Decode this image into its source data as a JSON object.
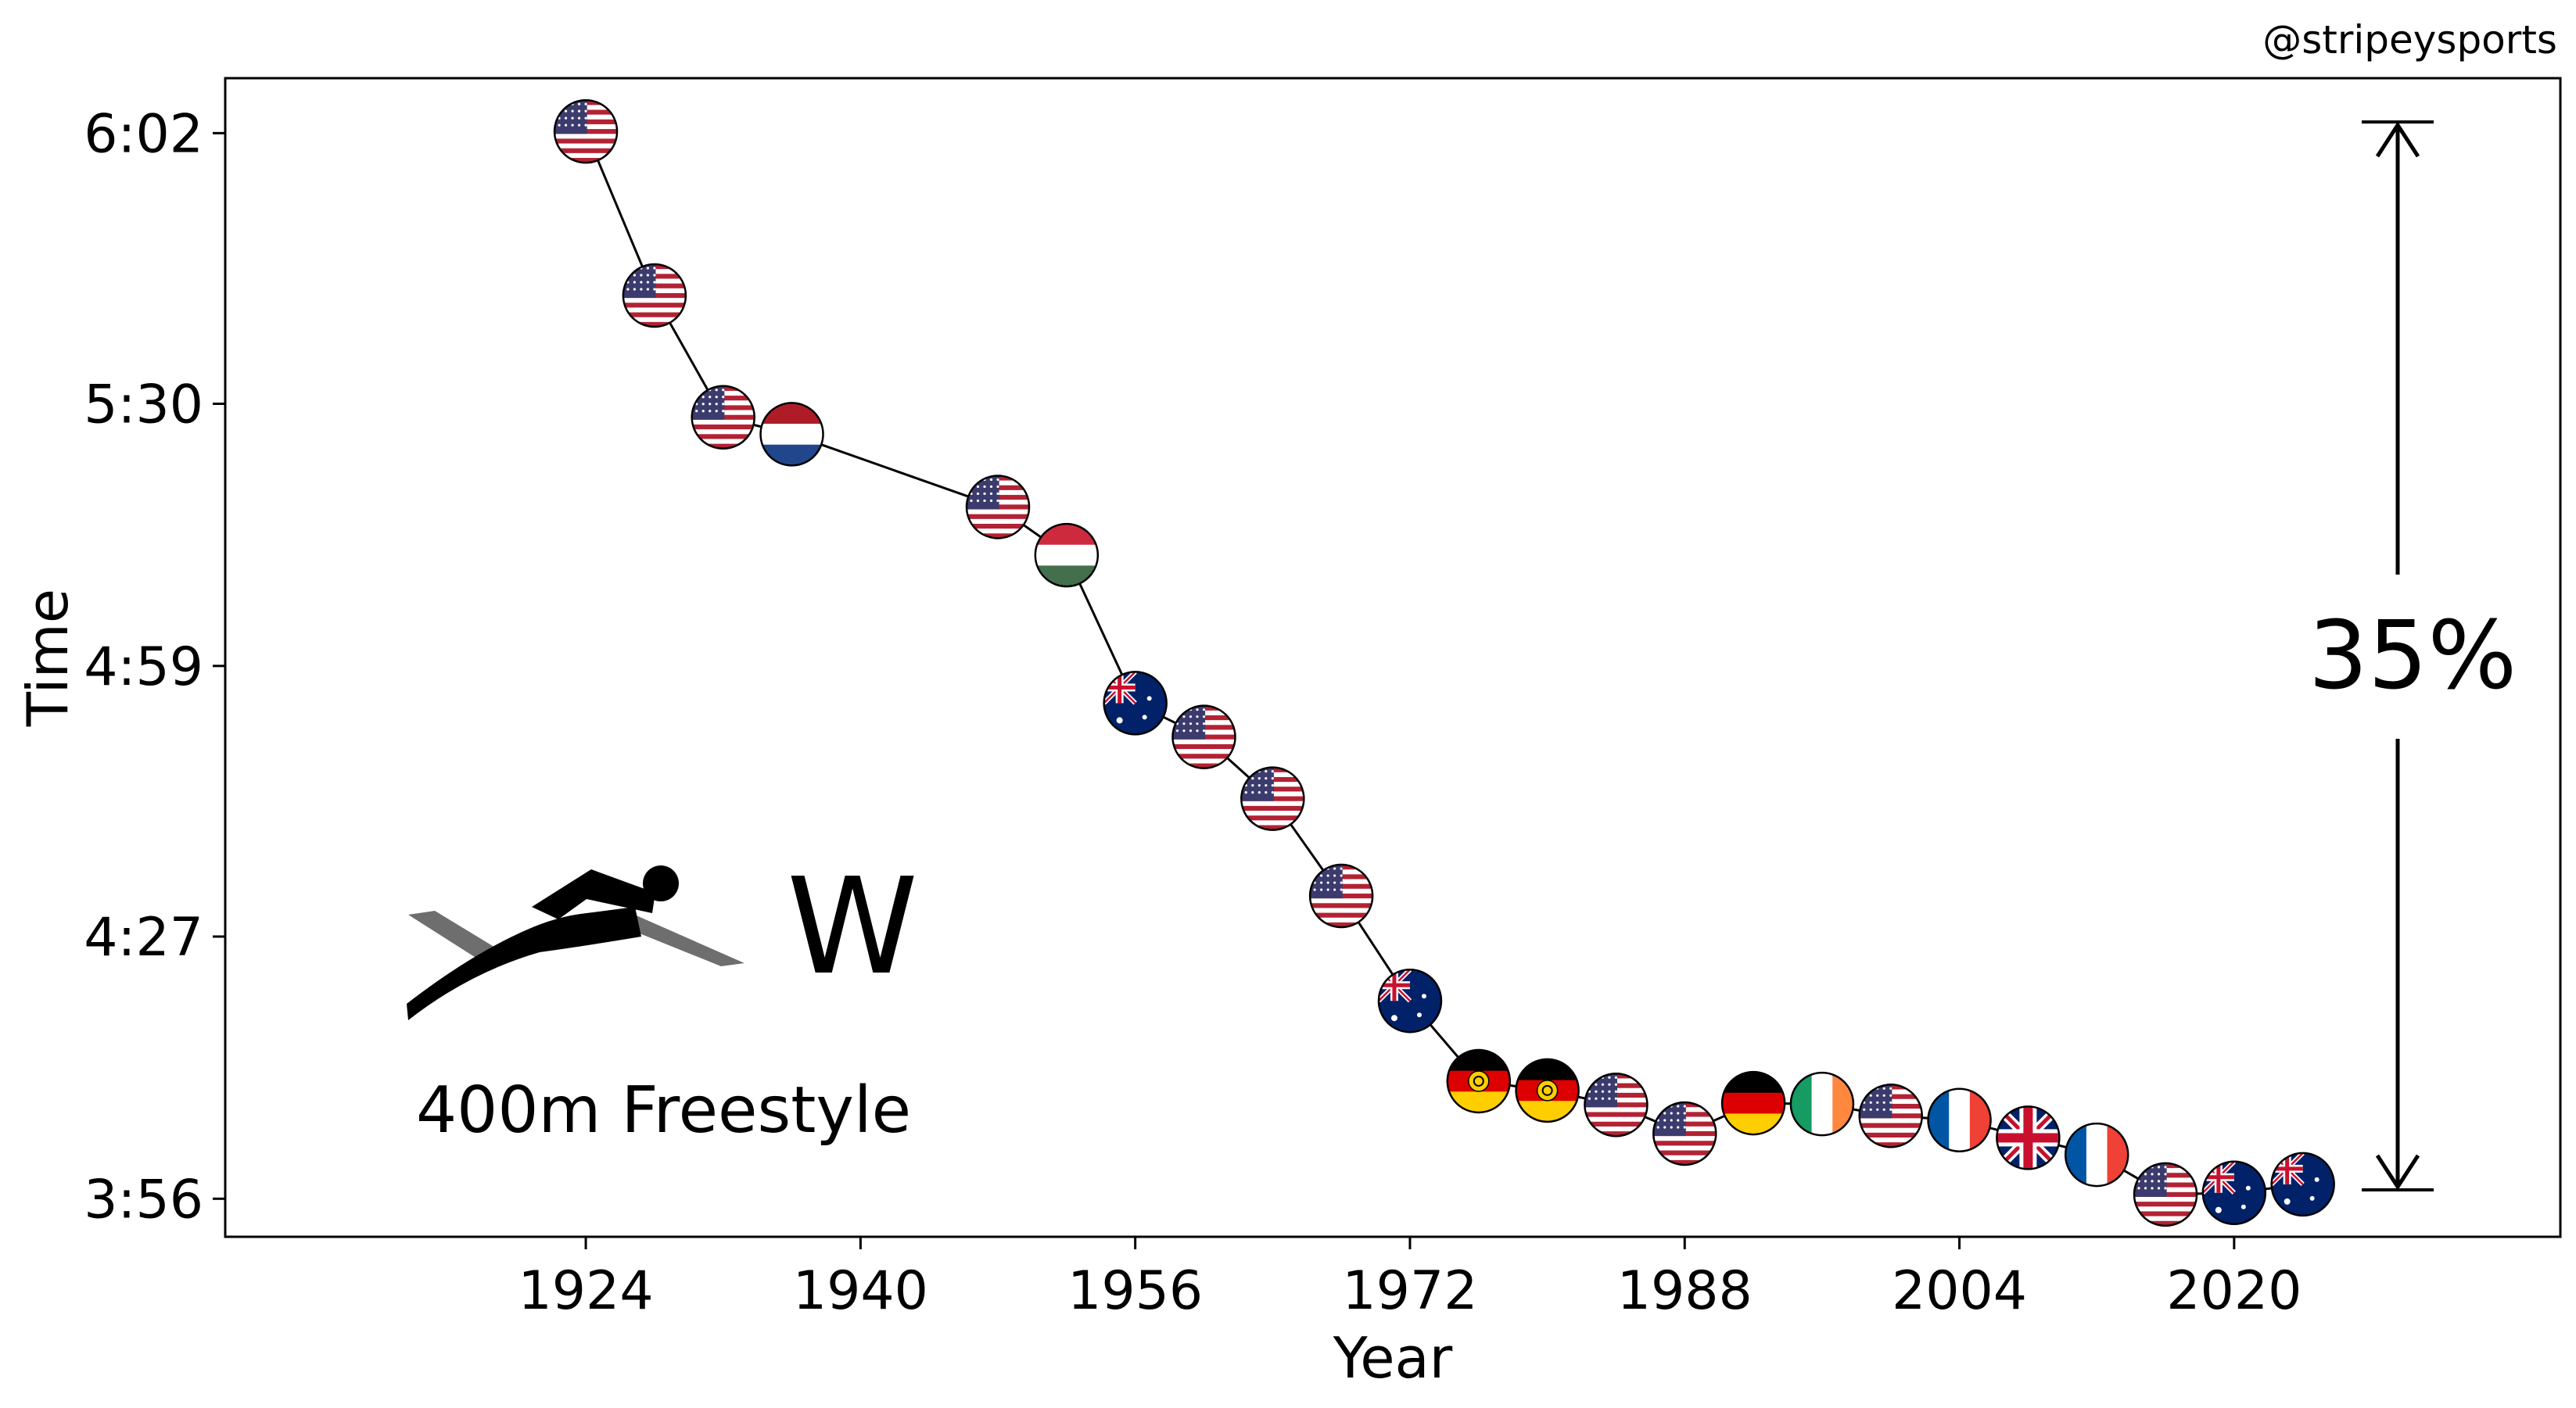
{
  "credit": "@stripeysports",
  "gender_label": "W",
  "event_label": "400m Freestyle",
  "improvement_label": "35%",
  "icons": {
    "athlete": "swimmer-icon"
  },
  "chart_data": {
    "type": "line",
    "xlabel": "Year",
    "ylabel": "Time",
    "x_ticks": [
      1924,
      1940,
      1956,
      1972,
      1988,
      2004,
      2020
    ],
    "y_ticks": [
      {
        "seconds": 362,
        "label": "6:02"
      },
      {
        "seconds": 330,
        "label": "5:30"
      },
      {
        "seconds": 299,
        "label": "4:59"
      },
      {
        "seconds": 267,
        "label": "4:27"
      },
      {
        "seconds": 236,
        "label": "3:56"
      }
    ],
    "xlim": [
      1903,
      2039
    ],
    "ylim": [
      231.5,
      368.5
    ],
    "grid": false,
    "series": [
      {
        "points": [
          {
            "year": 1924,
            "seconds": 362.2,
            "country": "USA"
          },
          {
            "year": 1928,
            "seconds": 342.8,
            "country": "USA"
          },
          {
            "year": 1932,
            "seconds": 328.4,
            "country": "USA"
          },
          {
            "year": 1936,
            "seconds": 326.4,
            "country": "NED"
          },
          {
            "year": 1948,
            "seconds": 317.8,
            "country": "USA"
          },
          {
            "year": 1952,
            "seconds": 312.1,
            "country": "HUN"
          },
          {
            "year": 1956,
            "seconds": 294.6,
            "country": "AUS"
          },
          {
            "year": 1960,
            "seconds": 290.6,
            "country": "USA"
          },
          {
            "year": 1964,
            "seconds": 283.3,
            "country": "USA"
          },
          {
            "year": 1968,
            "seconds": 271.8,
            "country": "USA"
          },
          {
            "year": 1972,
            "seconds": 259.4,
            "country": "AUS"
          },
          {
            "year": 1976,
            "seconds": 249.9,
            "country": "GDR"
          },
          {
            "year": 1980,
            "seconds": 248.8,
            "country": "GDR"
          },
          {
            "year": 1984,
            "seconds": 247.1,
            "country": "USA"
          },
          {
            "year": 1988,
            "seconds": 243.7,
            "country": "USA"
          },
          {
            "year": 1992,
            "seconds": 247.3,
            "country": "GER"
          },
          {
            "year": 1996,
            "seconds": 247.2,
            "country": "IRL"
          },
          {
            "year": 2000,
            "seconds": 245.8,
            "country": "USA"
          },
          {
            "year": 2004,
            "seconds": 245.3,
            "country": "FRA"
          },
          {
            "year": 2008,
            "seconds": 243.2,
            "country": "GBR"
          },
          {
            "year": 2012,
            "seconds": 241.2,
            "country": "FRA"
          },
          {
            "year": 2016,
            "seconds": 236.5,
            "country": "USA"
          },
          {
            "year": 2020,
            "seconds": 236.7,
            "country": "AUS"
          },
          {
            "year": 2024,
            "seconds": 237.7,
            "country": "AUS"
          }
        ]
      }
    ],
    "colors": {
      "line": "#000000",
      "usa_red": "#B22234",
      "usa_blue": "#3C3B6E",
      "ned_red": "#AE1C28",
      "ned_blue": "#21468B",
      "hun_red": "#CD2A3E",
      "hun_green": "#436F4D",
      "aus_blue": "#012169",
      "ger_red": "#DD0000",
      "ger_gold": "#FFCE00",
      "irl_green": "#169B62",
      "irl_orange": "#FF883E",
      "fra_blue": "#0055A4",
      "fra_red": "#EF4135",
      "gbr_blue": "#012169",
      "gbr_red": "#C8102E"
    }
  }
}
